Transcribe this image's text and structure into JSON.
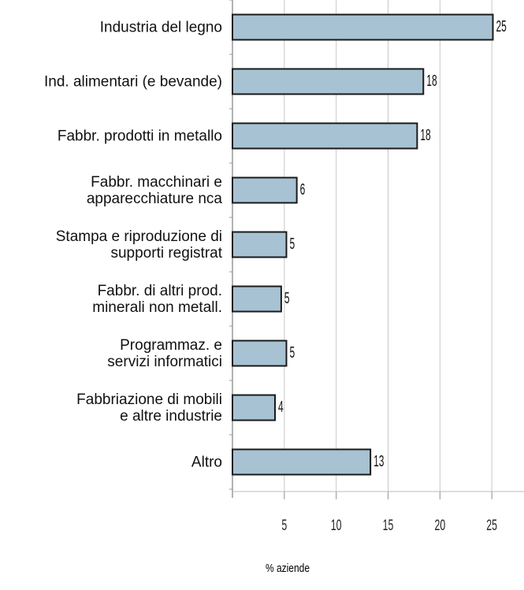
{
  "chart_data": {
    "type": "barh",
    "categories": [
      "Industria del legno",
      "Ind. alimentari (e bevande)",
      "Fabbr. prodotti in metallo",
      "Fabbr. macchinari e\napparecchiature nca",
      "Stampa e riproduzione di\nsupporti registrat",
      "Fabbr. di altri prod.\nminerali non metall.",
      "Programmaz. e\nservizi informatici",
      "Fabbriazione di mobili\ne altre industrie",
      "Altro"
    ],
    "values": [
      25.1,
      18.4,
      17.8,
      6.2,
      5.2,
      4.7,
      5.2,
      4.1,
      13.3
    ],
    "value_labels": [
      "25",
      "18",
      "18",
      "6",
      "5",
      "5",
      "5",
      "4",
      "13"
    ],
    "color": "#a7c2d2",
    "xlim": [
      0,
      28.1
    ],
    "xticks": [
      5,
      10,
      15,
      20,
      25
    ],
    "grid": true,
    "xlabel": "% aziende"
  }
}
